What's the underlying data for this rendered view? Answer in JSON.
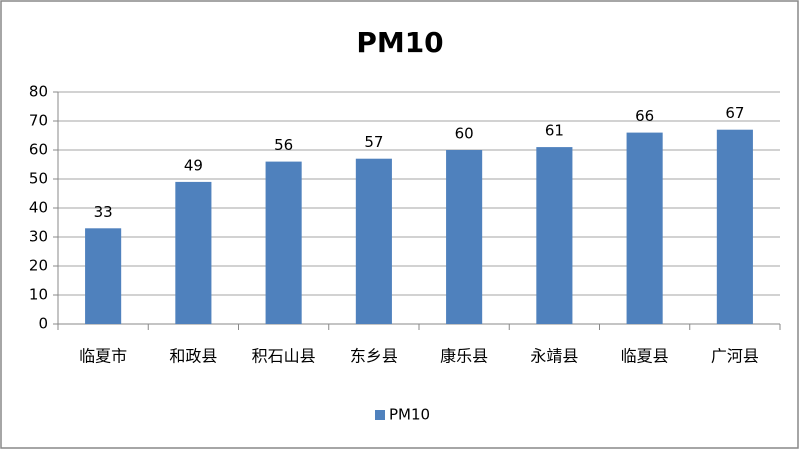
{
  "chart_data": {
    "type": "bar",
    "title": "PM10",
    "categories": [
      "临夏市",
      "和政县",
      "积石山县",
      "东乡县",
      "康乐县",
      "永靖县",
      "临夏县",
      "广河县"
    ],
    "series": [
      {
        "name": "PM10",
        "color": "#4f81bd",
        "values": [
          33,
          49,
          56,
          57,
          60,
          61,
          66,
          67
        ]
      }
    ],
    "ylim": [
      0,
      80
    ],
    "yticks": [
      0,
      10,
      20,
      30,
      40,
      50,
      60,
      70,
      80
    ],
    "grid": true,
    "legend": "bottom",
    "data_labels": true
  }
}
